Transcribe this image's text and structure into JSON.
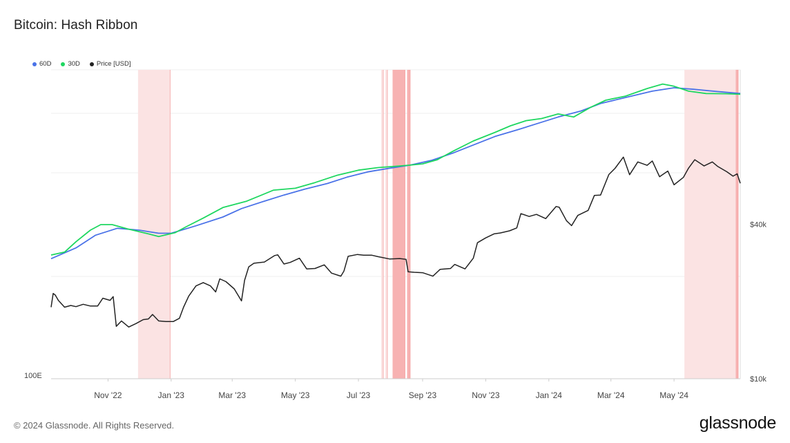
{
  "title": "Bitcoin: Hash Ribbon",
  "legend": [
    {
      "label": "60D",
      "color": "#4a72e8"
    },
    {
      "label": "30D",
      "color": "#1ed760"
    },
    {
      "label": "Price [USD]",
      "color": "#222222"
    }
  ],
  "footer": {
    "copyright": "© 2024 Glassnode. All Rights Reserved.",
    "logo": "glassnode"
  },
  "chart_data": {
    "type": "line",
    "title": "Bitcoin: Hash Ribbon",
    "x_range": [
      "2022-09-07",
      "2024-07-04"
    ],
    "x_ticks": [
      {
        "date": "2022-11-01",
        "label": "Nov '22"
      },
      {
        "date": "2023-01-01",
        "label": "Jan '23"
      },
      {
        "date": "2023-03-01",
        "label": "Mar '23"
      },
      {
        "date": "2023-05-01",
        "label": "May '23"
      },
      {
        "date": "2023-07-01",
        "label": "Jul '23"
      },
      {
        "date": "2023-09-01",
        "label": "Sep '23"
      },
      {
        "date": "2023-11-01",
        "label": "Nov '23"
      },
      {
        "date": "2024-01-01",
        "label": "Jan '24"
      },
      {
        "date": "2024-03-01",
        "label": "Mar '24"
      },
      {
        "date": "2024-05-01",
        "label": "May '24"
      }
    ],
    "left_axis": {
      "scale": "log",
      "ticks": [
        {
          "value": 100,
          "label": "100E"
        }
      ],
      "range": [
        100,
        700
      ]
    },
    "right_axis": {
      "scale": "log",
      "ticks": [
        {
          "value": 10000,
          "label": "$10k"
        },
        {
          "value": 40000,
          "label": "$40k"
        }
      ],
      "range": [
        10000,
        160000
      ]
    },
    "grid": true,
    "legend_position": "top-left",
    "capitulation_bands": [
      {
        "start": "2022-11-30",
        "end": "2022-12-31",
        "color": "#fbe3e3"
      },
      {
        "start": "2023-07-23",
        "end": "2023-07-25",
        "color": "#fbe3e3"
      },
      {
        "start": "2023-07-27",
        "end": "2023-07-29",
        "color": "#fbe3e3"
      },
      {
        "start": "2023-08-03",
        "end": "2023-08-15",
        "color": "#f7b2b2"
      },
      {
        "start": "2023-08-17",
        "end": "2023-08-20",
        "color": "#f7b2b2"
      },
      {
        "start": "2024-05-11",
        "end": "2024-06-30",
        "color": "#fbe3e3"
      },
      {
        "start": "2024-06-30",
        "end": "2024-07-02",
        "color": "#f7b2b2"
      }
    ],
    "series": [
      {
        "name": "Price [USD]",
        "axis": "right",
        "color": "#222222",
        "points": [
          [
            "2022-09-07",
            19000
          ],
          [
            "2022-09-09",
            21500
          ],
          [
            "2022-09-11",
            21200
          ],
          [
            "2022-09-14",
            20200
          ],
          [
            "2022-09-20",
            19000
          ],
          [
            "2022-09-26",
            19300
          ],
          [
            "2022-10-01",
            19100
          ],
          [
            "2022-10-08",
            19500
          ],
          [
            "2022-10-15",
            19200
          ],
          [
            "2022-10-22",
            19200
          ],
          [
            "2022-10-27",
            20600
          ],
          [
            "2022-11-03",
            20200
          ],
          [
            "2022-11-06",
            20900
          ],
          [
            "2022-11-09",
            16000
          ],
          [
            "2022-11-14",
            16800
          ],
          [
            "2022-11-21",
            15900
          ],
          [
            "2022-11-28",
            16400
          ],
          [
            "2022-12-05",
            17000
          ],
          [
            "2022-12-10",
            17100
          ],
          [
            "2022-12-14",
            17800
          ],
          [
            "2022-12-20",
            16800
          ],
          [
            "2022-12-27",
            16700
          ],
          [
            "2023-01-03",
            16700
          ],
          [
            "2023-01-09",
            17200
          ],
          [
            "2023-01-13",
            19000
          ],
          [
            "2023-01-18",
            21000
          ],
          [
            "2023-01-25",
            23000
          ],
          [
            "2023-02-01",
            23700
          ],
          [
            "2023-02-08",
            23000
          ],
          [
            "2023-02-13",
            21800
          ],
          [
            "2023-02-17",
            24500
          ],
          [
            "2023-02-23",
            23900
          ],
          [
            "2023-03-03",
            22400
          ],
          [
            "2023-03-10",
            20100
          ],
          [
            "2023-03-13",
            24200
          ],
          [
            "2023-03-17",
            27300
          ],
          [
            "2023-03-22",
            28200
          ],
          [
            "2023-04-01",
            28500
          ],
          [
            "2023-04-11",
            30200
          ],
          [
            "2023-04-14",
            30400
          ],
          [
            "2023-04-20",
            28000
          ],
          [
            "2023-04-26",
            28400
          ],
          [
            "2023-05-05",
            29500
          ],
          [
            "2023-05-12",
            26800
          ],
          [
            "2023-05-20",
            26900
          ],
          [
            "2023-05-29",
            27800
          ],
          [
            "2023-06-05",
            25800
          ],
          [
            "2023-06-14",
            25100
          ],
          [
            "2023-06-17",
            26300
          ],
          [
            "2023-06-21",
            30000
          ],
          [
            "2023-06-30",
            30500
          ],
          [
            "2023-07-06",
            30300
          ],
          [
            "2023-07-14",
            30300
          ],
          [
            "2023-07-20",
            29900
          ],
          [
            "2023-07-31",
            29300
          ],
          [
            "2023-08-10",
            29400
          ],
          [
            "2023-08-16",
            29200
          ],
          [
            "2023-08-18",
            26100
          ],
          [
            "2023-08-24",
            26000
          ],
          [
            "2023-09-01",
            25900
          ],
          [
            "2023-09-11",
            25100
          ],
          [
            "2023-09-18",
            26700
          ],
          [
            "2023-09-28",
            26900
          ],
          [
            "2023-10-02",
            27900
          ],
          [
            "2023-10-12",
            26800
          ],
          [
            "2023-10-20",
            29500
          ],
          [
            "2023-10-24",
            33900
          ],
          [
            "2023-11-01",
            35400
          ],
          [
            "2023-11-09",
            36700
          ],
          [
            "2023-11-15",
            37000
          ],
          [
            "2023-11-24",
            37700
          ],
          [
            "2023-12-01",
            38700
          ],
          [
            "2023-12-05",
            44000
          ],
          [
            "2023-12-13",
            42900
          ],
          [
            "2023-12-20",
            43700
          ],
          [
            "2023-12-29",
            42100
          ],
          [
            "2024-01-08",
            46900
          ],
          [
            "2024-01-11",
            46600
          ],
          [
            "2024-01-18",
            41300
          ],
          [
            "2024-01-23",
            39500
          ],
          [
            "2024-01-29",
            43300
          ],
          [
            "2024-02-08",
            45300
          ],
          [
            "2024-02-14",
            51800
          ],
          [
            "2024-02-20",
            52000
          ],
          [
            "2024-02-28",
            62500
          ],
          [
            "2024-03-05",
            66100
          ],
          [
            "2024-03-13",
            73100
          ],
          [
            "2024-03-19",
            62400
          ],
          [
            "2024-03-27",
            70000
          ],
          [
            "2024-04-05",
            67900
          ],
          [
            "2024-04-10",
            70600
          ],
          [
            "2024-04-17",
            61300
          ],
          [
            "2024-04-25",
            64500
          ],
          [
            "2024-05-01",
            57000
          ],
          [
            "2024-05-10",
            60900
          ],
          [
            "2024-05-15",
            66200
          ],
          [
            "2024-05-21",
            71400
          ],
          [
            "2024-05-30",
            67500
          ],
          [
            "2024-06-07",
            70000
          ],
          [
            "2024-06-12",
            67300
          ],
          [
            "2024-06-21",
            64100
          ],
          [
            "2024-06-27",
            61600
          ],
          [
            "2024-07-01",
            62900
          ],
          [
            "2024-07-04",
            57800
          ]
        ]
      },
      {
        "name": "60D",
        "axis": "left",
        "color": "#4a72e8",
        "points": [
          [
            "2022-09-07",
            213
          ],
          [
            "2022-10-01",
            228
          ],
          [
            "2022-10-20",
            247
          ],
          [
            "2022-11-10",
            258
          ],
          [
            "2022-12-01",
            255
          ],
          [
            "2022-12-20",
            250
          ],
          [
            "2023-01-01",
            250
          ],
          [
            "2023-01-25",
            262
          ],
          [
            "2023-02-20",
            277
          ],
          [
            "2023-03-10",
            292
          ],
          [
            "2023-04-01",
            306
          ],
          [
            "2023-04-20",
            318
          ],
          [
            "2023-05-10",
            330
          ],
          [
            "2023-06-01",
            342
          ],
          [
            "2023-06-20",
            356
          ],
          [
            "2023-07-10",
            368
          ],
          [
            "2023-08-01",
            377
          ],
          [
            "2023-08-20",
            384
          ],
          [
            "2023-09-10",
            396
          ],
          [
            "2023-10-01",
            415
          ],
          [
            "2023-10-20",
            436
          ],
          [
            "2023-11-10",
            460
          ],
          [
            "2023-12-01",
            479
          ],
          [
            "2023-12-20",
            498
          ],
          [
            "2024-01-10",
            520
          ],
          [
            "2024-02-01",
            540
          ],
          [
            "2024-02-20",
            566
          ],
          [
            "2024-03-15",
            588
          ],
          [
            "2024-04-10",
            612
          ],
          [
            "2024-05-01",
            625
          ],
          [
            "2024-05-20",
            619
          ],
          [
            "2024-06-10",
            611
          ],
          [
            "2024-07-04",
            603
          ]
        ]
      },
      {
        "name": "30D",
        "axis": "left",
        "color": "#1ed760",
        "points": [
          [
            "2022-09-07",
            218
          ],
          [
            "2022-09-20",
            222
          ],
          [
            "2022-10-01",
            237
          ],
          [
            "2022-10-15",
            255
          ],
          [
            "2022-10-25",
            264
          ],
          [
            "2022-11-05",
            264
          ],
          [
            "2022-11-20",
            257
          ],
          [
            "2022-12-10",
            249
          ],
          [
            "2022-12-20",
            245
          ],
          [
            "2023-01-05",
            251
          ],
          [
            "2023-01-15",
            260
          ],
          [
            "2023-02-01",
            275
          ],
          [
            "2023-02-20",
            294
          ],
          [
            "2023-03-15",
            306
          ],
          [
            "2023-04-10",
            328
          ],
          [
            "2023-05-01",
            332
          ],
          [
            "2023-05-20",
            344
          ],
          [
            "2023-06-10",
            360
          ],
          [
            "2023-07-01",
            372
          ],
          [
            "2023-07-20",
            378
          ],
          [
            "2023-08-10",
            382
          ],
          [
            "2023-08-20",
            384
          ],
          [
            "2023-09-01",
            387
          ],
          [
            "2023-09-15",
            397
          ],
          [
            "2023-10-01",
            420
          ],
          [
            "2023-10-20",
            447
          ],
          [
            "2023-11-10",
            472
          ],
          [
            "2023-11-25",
            492
          ],
          [
            "2023-12-10",
            508
          ],
          [
            "2023-12-25",
            515
          ],
          [
            "2024-01-10",
            530
          ],
          [
            "2024-01-25",
            520
          ],
          [
            "2024-02-10",
            552
          ],
          [
            "2024-02-25",
            578
          ],
          [
            "2024-03-15",
            593
          ],
          [
            "2024-04-05",
            622
          ],
          [
            "2024-04-20",
            640
          ],
          [
            "2024-05-01",
            631
          ],
          [
            "2024-05-15",
            612
          ],
          [
            "2024-06-01",
            603
          ],
          [
            "2024-06-20",
            602
          ],
          [
            "2024-07-04",
            600
          ]
        ]
      }
    ]
  }
}
